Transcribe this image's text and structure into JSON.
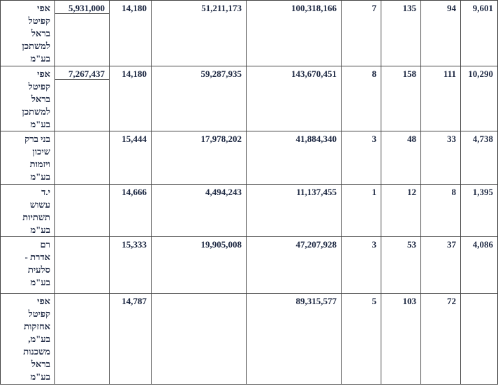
{
  "rows": [
    {
      "name_lines": [
        "אפי",
        "קפיטל",
        "בראל",
        "למשתכן",
        "בע\"מ"
      ],
      "c1": "5,931,000",
      "c2": "14,180",
      "c3": "51,211,173",
      "c4": "100,318,166",
      "c5": "7",
      "c6": "135",
      "c7": "94",
      "c8": "9,601"
    },
    {
      "name_lines": [
        "אפי",
        "קפיטל",
        "בראל",
        "למשתכן",
        "בע\"מ"
      ],
      "c1": "7,267,437",
      "c2": "14,180",
      "c3": "59,287,935",
      "c4": "143,670,451",
      "c5": "8",
      "c6": "158",
      "c7": "111",
      "c8": "10,290"
    },
    {
      "name_lines": [
        "בני ברק",
        "שיכון",
        "ויזמות",
        "בע\"מ"
      ],
      "c1": "",
      "c2": "15,444",
      "c3": "17,978,202",
      "c4": "41,884,340",
      "c5": "3",
      "c6": "48",
      "c7": "33",
      "c8": "4,738"
    },
    {
      "name_lines": [
        "י.ד",
        "עשוש",
        "תשתיות",
        "בע\"מ"
      ],
      "c1": "",
      "c2": "14,666",
      "c3": "4,494,243",
      "c4": "11,137,455",
      "c5": "1",
      "c6": "12",
      "c7": "8",
      "c8": "1,395"
    },
    {
      "name_lines": [
        "רם",
        "אדרת -",
        "סלעית",
        "בע\"מ"
      ],
      "c1": "",
      "c2": "15,333",
      "c3": "19,905,008",
      "c4": "47,207,928",
      "c5": "3",
      "c6": "53",
      "c7": "37",
      "c8": "4,086"
    },
    {
      "name_lines": [
        "אפי",
        "קפיטל",
        "אחזקות",
        "בע\"מ,",
        "משכנות",
        "בראל",
        "בע\"מ"
      ],
      "c1": "",
      "c2": "14,787",
      "c3": "",
      "c4": "89,315,577",
      "c5": "5",
      "c6": "103",
      "c7": "72",
      "c8": ""
    }
  ]
}
